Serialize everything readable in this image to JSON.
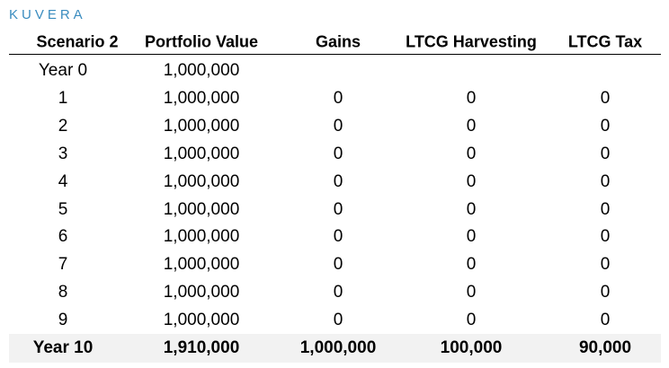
{
  "header": {
    "logo": "KUVERA"
  },
  "table": {
    "columns": [
      "Scenario 2",
      "Portfolio Value",
      "Gains",
      "LTCG Harvesting",
      "LTCG Tax"
    ],
    "rows": [
      [
        "Year 0",
        "1,000,000"
      ],
      [
        "1",
        "1,000,000",
        "0",
        "0",
        "0"
      ],
      [
        "2",
        "1,000,000",
        "0",
        "0",
        "0"
      ],
      [
        "3",
        "1,000,000",
        "0",
        "0",
        "0"
      ],
      [
        "4",
        "1,000,000",
        "0",
        "0",
        "0"
      ],
      [
        "5",
        "1,000,000",
        "0",
        "0",
        "0"
      ],
      [
        "6",
        "1,000,000",
        "0",
        "0",
        "0"
      ],
      [
        "7",
        "1,000,000",
        "0",
        "0",
        "0"
      ],
      [
        "8",
        "1,000,000",
        "0",
        "0",
        "0"
      ],
      [
        "9",
        "1,000,000",
        "0",
        "0",
        "0"
      ]
    ],
    "total": [
      "Year 10",
      "1,910,000",
      "1,000,000",
      "100,000",
      "90,000"
    ]
  }
}
